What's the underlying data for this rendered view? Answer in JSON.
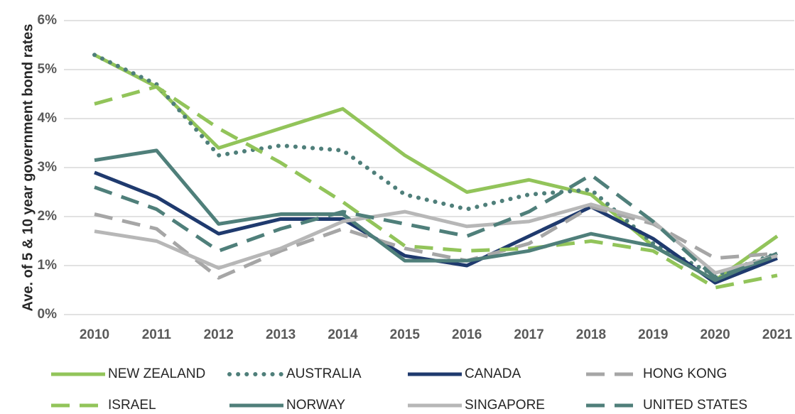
{
  "chart_data": {
    "type": "line",
    "y_label": "Ave. of 5 & 10 year government bond rates",
    "categories": [
      "2010",
      "2011",
      "2012",
      "2013",
      "2014",
      "2015",
      "2016",
      "2017",
      "2018",
      "2019",
      "2020",
      "2021"
    ],
    "ylim": [
      0,
      6
    ],
    "yticks": [
      {
        "value": 0,
        "label": "0%"
      },
      {
        "value": 1,
        "label": "1%"
      },
      {
        "value": 2,
        "label": "2%"
      },
      {
        "value": 3,
        "label": "3%"
      },
      {
        "value": 4,
        "label": "4%"
      },
      {
        "value": 5,
        "label": "5%"
      },
      {
        "value": 6,
        "label": "6%"
      }
    ],
    "grid": true,
    "series": [
      {
        "name": "NEW ZEALAND",
        "color": "#92c45a",
        "dash": "solid",
        "values": [
          5.3,
          4.65,
          3.4,
          3.8,
          4.2,
          3.25,
          2.5,
          2.75,
          2.45,
          1.4,
          0.7,
          1.6
        ]
      },
      {
        "name": "AUSTRALIA",
        "color": "#4f7f7a",
        "dash": "dotted",
        "values": [
          5.3,
          4.7,
          3.25,
          3.45,
          3.35,
          2.45,
          2.15,
          2.45,
          2.55,
          1.45,
          0.8,
          1.25
        ]
      },
      {
        "name": "CANADA",
        "color": "#1f3a6e",
        "dash": "solid",
        "values": [
          2.9,
          2.4,
          1.65,
          1.95,
          1.95,
          1.2,
          1.0,
          1.6,
          2.2,
          1.55,
          0.65,
          1.15
        ]
      },
      {
        "name": "HONG KONG",
        "color": "#a6a6a6",
        "dash": "dashed",
        "values": [
          2.05,
          1.75,
          0.75,
          1.3,
          1.75,
          1.35,
          1.1,
          1.45,
          2.2,
          1.85,
          1.15,
          1.25
        ]
      },
      {
        "name": "ISRAEL",
        "color": "#92c45a",
        "dash": "dashed",
        "values": [
          4.3,
          4.65,
          3.8,
          3.1,
          2.3,
          1.4,
          1.3,
          1.35,
          1.5,
          1.3,
          0.55,
          0.8
        ]
      },
      {
        "name": "NORWAY",
        "color": "#4f7f7a",
        "dash": "solid",
        "values": [
          3.15,
          3.35,
          1.85,
          2.05,
          2.05,
          1.1,
          1.1,
          1.3,
          1.65,
          1.4,
          0.7,
          1.25
        ]
      },
      {
        "name": "SINGAPORE",
        "color": "#b7b7b7",
        "dash": "solid",
        "values": [
          1.7,
          1.5,
          0.95,
          1.35,
          1.9,
          2.1,
          1.8,
          1.9,
          2.25,
          1.9,
          0.85,
          1.2
        ]
      },
      {
        "name": "UNITED STATES",
        "color": "#4f7f7a",
        "dash": "dashed",
        "values": [
          2.6,
          2.15,
          1.3,
          1.75,
          2.1,
          1.85,
          1.6,
          2.1,
          2.85,
          1.9,
          0.75,
          1.2
        ]
      }
    ]
  }
}
